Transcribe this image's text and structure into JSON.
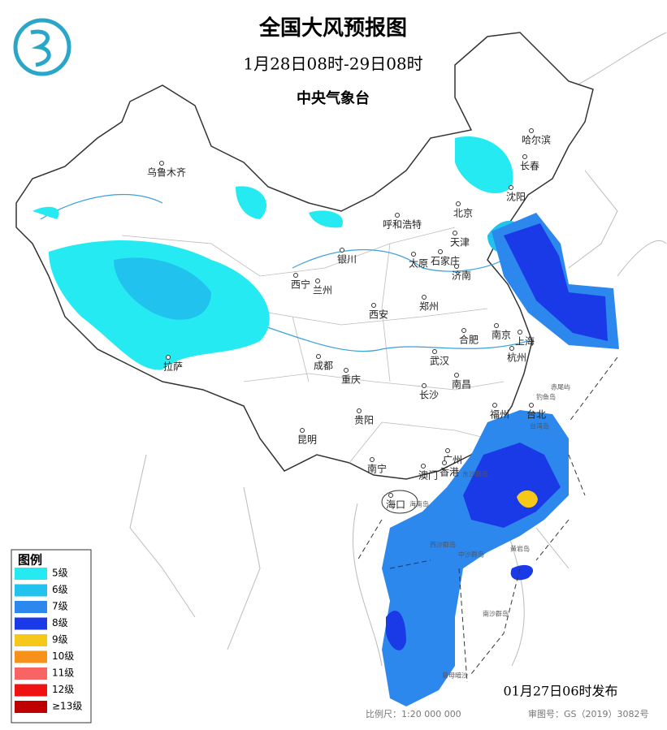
{
  "header": {
    "title": "全国大风预报图",
    "period": "1月28日08时-29日08时",
    "issuer": "中央气象台"
  },
  "cities": [
    "乌鲁木齐",
    "哈尔滨",
    "长春",
    "沈阳",
    "呼和浩特",
    "北京",
    "天津",
    "银川",
    "太原",
    "石家庄",
    "西宁",
    "兰州",
    "济南",
    "郑州",
    "西安",
    "合肥",
    "南京",
    "上海",
    "武汉",
    "杭州",
    "成都",
    "重庆",
    "拉萨",
    "南昌",
    "长沙",
    "贵阳",
    "福州",
    "台北",
    "昆明",
    "广州",
    "香港",
    "澳门",
    "南宁",
    "海口"
  ],
  "islands": [
    "海南岛",
    "东沙群岛",
    "西沙群岛",
    "中沙群岛",
    "黄岩岛",
    "南沙群岛",
    "曾母暗沙",
    "钓鱼岛",
    "赤尾屿",
    "台湾岛"
  ],
  "legend": {
    "title": "图例",
    "items": [
      {
        "label": "5级",
        "color": "#25eaf2"
      },
      {
        "label": "6级",
        "color": "#22c2ee"
      },
      {
        "label": "7级",
        "color": "#2d88ee"
      },
      {
        "label": "8级",
        "color": "#1a3ae8"
      },
      {
        "label": "9级",
        "color": "#f6c81a"
      },
      {
        "label": "10级",
        "color": "#f7911a"
      },
      {
        "label": "11级",
        "color": "#f86363"
      },
      {
        "label": "12级",
        "color": "#ee1212"
      },
      {
        "label": "≥13级",
        "color": "#c00000"
      }
    ]
  },
  "footer": {
    "issued": "01月27日06时发布",
    "scale": "比例尺：1:20 000 000",
    "review_no": "审图号：GS（2019）3082号"
  }
}
